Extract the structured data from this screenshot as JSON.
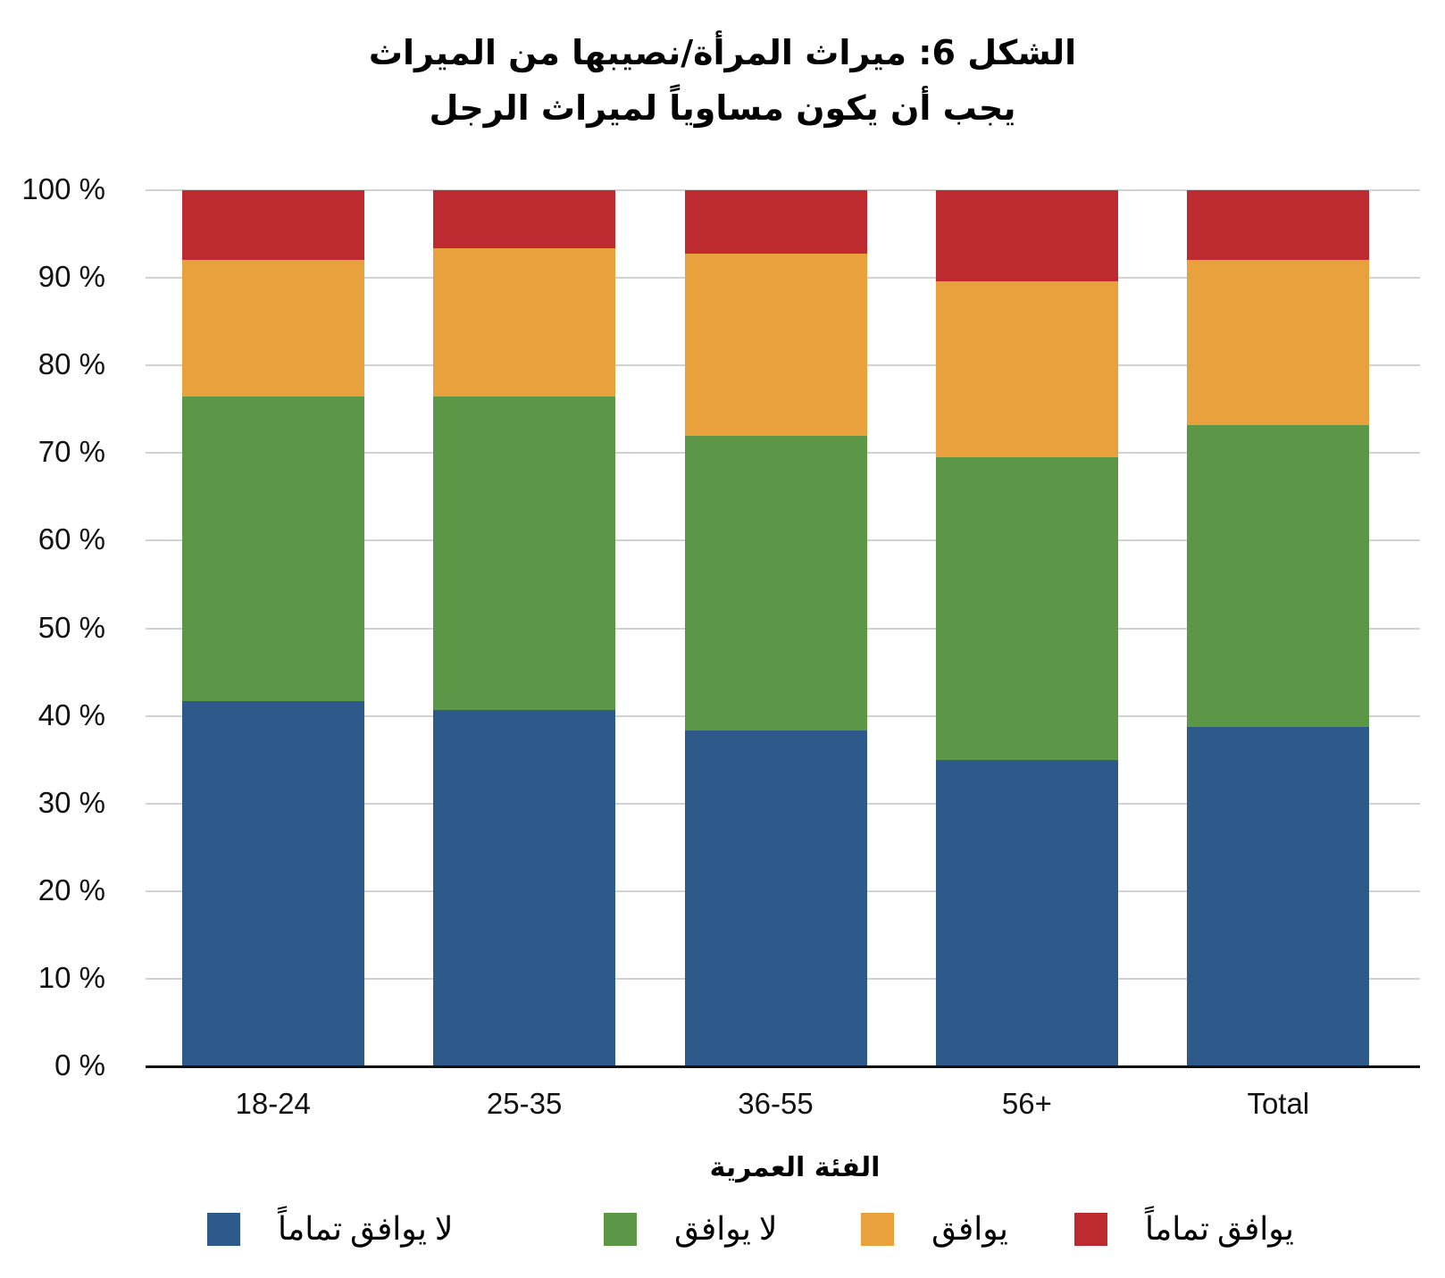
{
  "chart_data": {
    "type": "bar",
    "stacked": true,
    "title": "الشكل 6: ميراث المرأة/نصيبها من الميراث يجب أن يكون مساوياً لميراث الرجل",
    "title_lines": [
      "الشكل 6: ميراث المرأة/نصيبها من الميراث",
      "يجب أن يكون مساوياً لميراث الرجل"
    ],
    "xlabel": "الفئة العمرية",
    "ylabel": "",
    "ylim": [
      0,
      100
    ],
    "y_ticks": [
      "0 %",
      "10 %",
      "20 %",
      "30 %",
      "40 %",
      "50 %",
      "60 %",
      "70 %",
      "80 %",
      "90 %",
      "100 %"
    ],
    "grid": true,
    "legend_position": "bottom",
    "categories": [
      "18-24",
      "25-35",
      "36-55",
      "56+",
      "Total"
    ],
    "series": [
      {
        "name": "لا يوافق تماماً",
        "color": "#2e598b",
        "values": [
          41.7,
          40.7,
          38.3,
          35.0,
          38.7
        ]
      },
      {
        "name": "لا يوافق",
        "color": "#5c9647",
        "values": [
          34.8,
          35.8,
          33.7,
          34.5,
          34.5
        ]
      },
      {
        "name": "يوافق",
        "color": "#e8a13c",
        "values": [
          15.6,
          16.9,
          20.8,
          20.1,
          18.9
        ]
      },
      {
        "name": "يوافق تماماً",
        "color": "#bd2b31",
        "values": [
          7.9,
          6.6,
          7.2,
          10.4,
          7.9
        ]
      }
    ]
  },
  "legend": [
    {
      "label": "لا يوافق تماماً",
      "color": "#2e598b"
    },
    {
      "label": "لا يوافق",
      "color": "#5c9647"
    },
    {
      "label": "يوافق",
      "color": "#e8a13c"
    },
    {
      "label": "يوافق تماماً",
      "color": "#bd2b31"
    }
  ]
}
